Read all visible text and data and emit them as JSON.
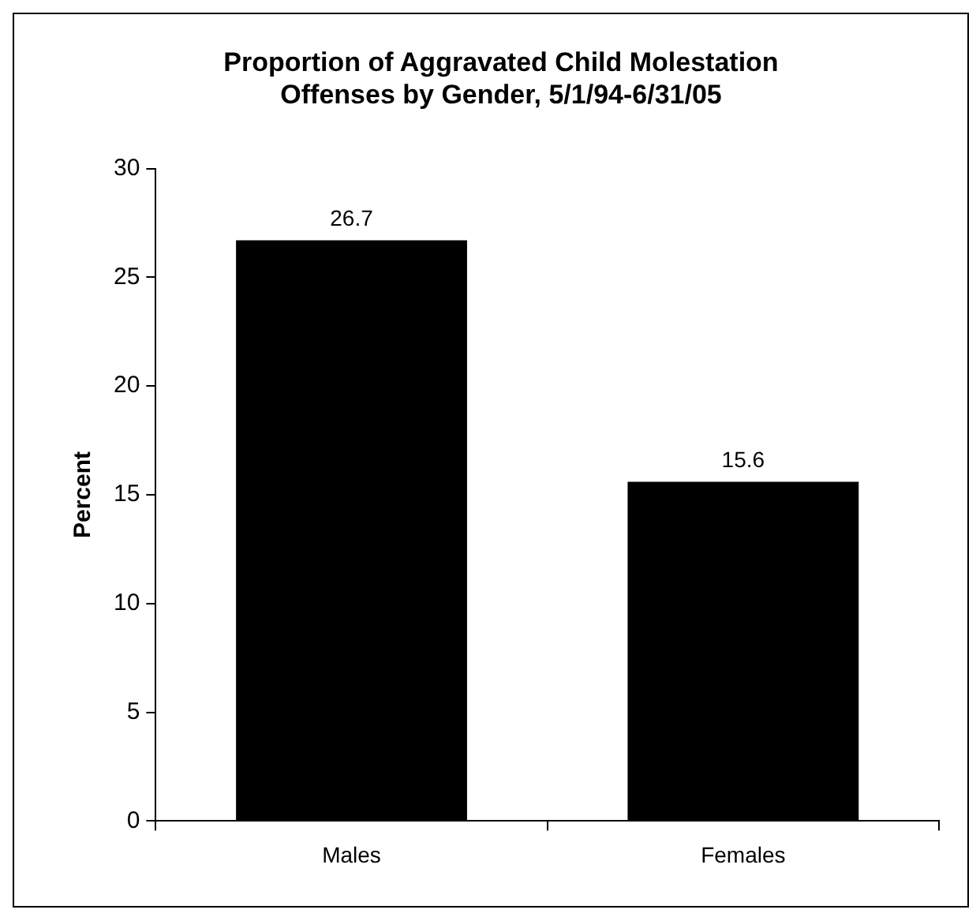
{
  "chart_data": {
    "type": "bar",
    "title": "Proportion of Aggravated Child Molestation Offenses by Gender, 5/1/94-6/31/05",
    "ylabel": "Percent",
    "categories": [
      "Males",
      "Females"
    ],
    "values": [
      26.7,
      15.6
    ],
    "color": "#000000",
    "ylim": [
      0,
      30
    ],
    "yticks": [
      0,
      5,
      10,
      15,
      20,
      25,
      30
    ],
    "grid": false,
    "legend": false,
    "data_labels": true
  }
}
